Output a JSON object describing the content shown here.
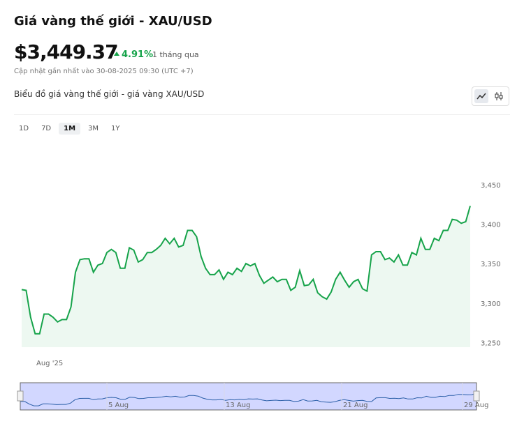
{
  "header": {
    "title": "Giá vàng thế giới - XAU/USD",
    "price": "$3,449.37",
    "change": "4.91%",
    "period": "1 tháng qua",
    "updated": "Cập nhật gần nhất vào 30-08-2025 09:30 (UTC +7)"
  },
  "ranges": {
    "options": [
      "1D",
      "7D",
      "1M",
      "3M",
      "1Y"
    ],
    "active": "1M"
  },
  "chart_data": {
    "type": "line",
    "title": "Biểu đồ giá vàng thế giới - giá vàng XAU/USD",
    "color": "#16a34a",
    "x_label": "Aug '25",
    "values": [
      3318,
      3317,
      3283,
      3262,
      3262,
      3287,
      3287,
      3283,
      3277,
      3280,
      3280,
      3296,
      3340,
      3356,
      3357,
      3357,
      3340,
      3349,
      3351,
      3365,
      3369,
      3365,
      3345,
      3345,
      3371,
      3368,
      3353,
      3356,
      3365,
      3365,
      3369,
      3374,
      3383,
      3376,
      3383,
      3372,
      3374,
      3393,
      3393,
      3385,
      3360,
      3345,
      3337,
      3337,
      3343,
      3331,
      3340,
      3337,
      3345,
      3341,
      3351,
      3348,
      3351,
      3336,
      3326,
      3330,
      3334,
      3328,
      3331,
      3331,
      3317,
      3321,
      3342,
      3323,
      3324,
      3331,
      3314,
      3309,
      3306,
      3315,
      3331,
      3340,
      3330,
      3321,
      3328,
      3331,
      3319,
      3316,
      3362,
      3366,
      3366,
      3356,
      3358,
      3353,
      3362,
      3349,
      3349,
      3365,
      3362,
      3383,
      3369,
      3369,
      3383,
      3380,
      3393,
      3393,
      3407,
      3406,
      3402,
      3404,
      3424
    ],
    "ylim": [
      3245,
      3465
    ],
    "yticks": [
      {
        "value": 3250,
        "label": "3,250"
      },
      {
        "value": 3300,
        "label": "3,300"
      },
      {
        "value": 3350,
        "label": "3,350"
      },
      {
        "value": 3400,
        "label": "3,400"
      },
      {
        "value": 3450,
        "label": "3,450"
      }
    ],
    "navigator_labels": [
      "5 Aug",
      "13 Aug",
      "21 Aug",
      "29 Aug"
    ]
  }
}
